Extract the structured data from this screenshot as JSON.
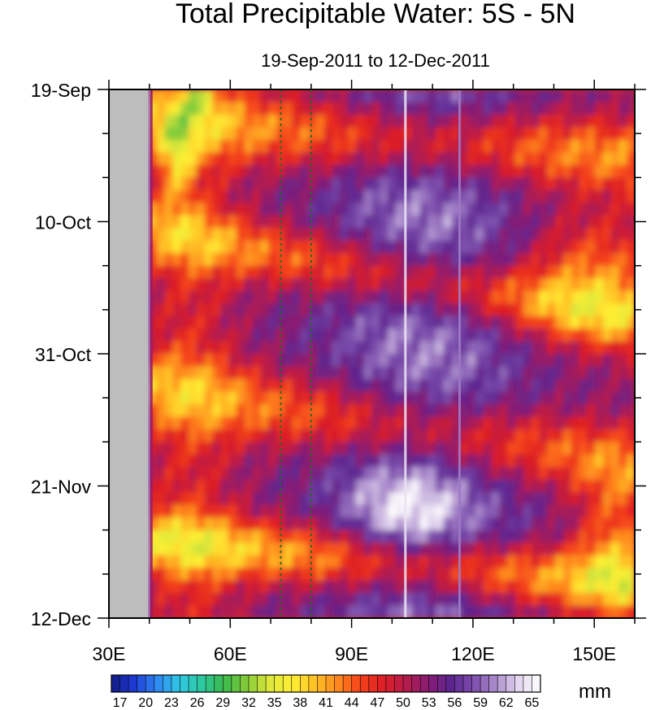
{
  "chart_data": {
    "type": "heatmap",
    "title": "Total Precipitable Water: 5S - 5N",
    "subtitle": "19-Sep-2011 to 12-Dec-2011",
    "x_axis": {
      "range": [
        30,
        160
      ],
      "major_ticks": [
        30,
        60,
        90,
        120,
        150
      ],
      "tick_labels": [
        "30E",
        "60E",
        "90E",
        "120E",
        "150E"
      ],
      "minor_step": 10
    },
    "y_axis": {
      "direction": "time increasing downward",
      "range_days": [
        0,
        84
      ],
      "major_ticks_days": [
        0,
        21,
        42,
        63,
        84
      ],
      "tick_labels": [
        "19-Sep",
        "10-Oct",
        "31-Oct",
        "21-Nov",
        "12-Dec"
      ],
      "minor_step_days": 7
    },
    "land_mask_lon_range": [
      30.4,
      39.7
    ],
    "reference_lines_lon": [
      72.5,
      80
    ],
    "colorbar": {
      "units": "mm",
      "min": 16,
      "max": 66,
      "step": 1,
      "labels": [
        17,
        20,
        23,
        26,
        29,
        32,
        35,
        38,
        41,
        44,
        47,
        50,
        53,
        56,
        59,
        62,
        65
      ]
    },
    "colors": {
      "land": "#bdbdbd",
      "reference_line": "#1f6e1f",
      "scale": [
        "#0f1a82",
        "#1f3ad6",
        "#2f86f2",
        "#30c8e6",
        "#2fc9a0",
        "#3bb84a",
        "#86cc3a",
        "#dde83a",
        "#fff034",
        "#ffc125",
        "#ff8a1f",
        "#f5421a",
        "#de1f24",
        "#b81c4a",
        "#8a1c72",
        "#5e2590",
        "#7a4cab",
        "#ab8bcc",
        "#e2d6ee",
        "#ffffff"
      ]
    }
  }
}
